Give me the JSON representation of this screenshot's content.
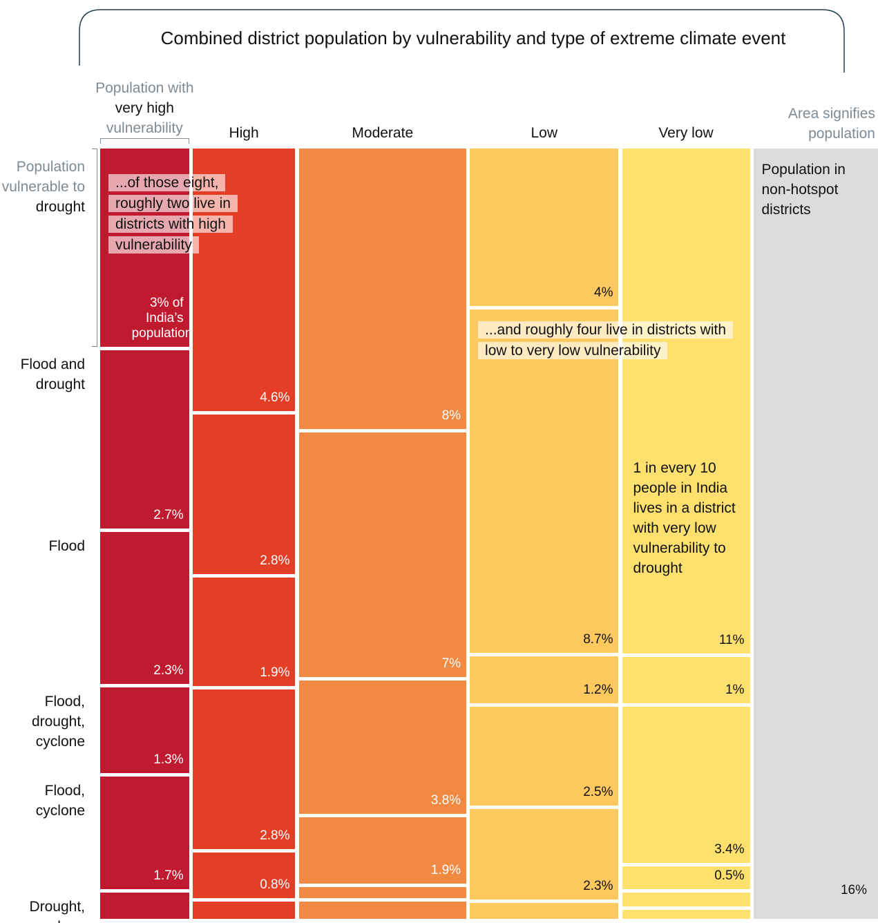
{
  "chart_data": {
    "type": "mosaic",
    "title": "Combined district population by vulnerability and type of extreme climate event",
    "column_header_note": [
      "Population with",
      "vulnerability"
    ],
    "categories": [
      "very high",
      "High",
      "Moderate",
      "Low",
      "Very low"
    ],
    "colors": [
      "#bf1a2f",
      "#e53e26",
      "#f08a43",
      "#fdc85e",
      "#fde06e"
    ],
    "row_label_note": "Population vulnerable to",
    "series": [
      {
        "name": "drought",
        "values": [
          3,
          4.6,
          8,
          4,
          11
        ],
        "value_labels": [
          "3% of India’s population",
          "4.6%",
          "8%",
          "4%",
          "11%"
        ]
      },
      {
        "name": "Flood and drought",
        "values": [
          2.7,
          2.8,
          7,
          8.7,
          1
        ],
        "value_labels": [
          "2.7%",
          "2.8%",
          "7%",
          "8.7%",
          "1%"
        ]
      },
      {
        "name": "Flood",
        "values": [
          2.3,
          1.9,
          3.8,
          1.2,
          3.4
        ],
        "value_labels": [
          "2.3%",
          "1.9%",
          "3.8%",
          "1.2%",
          "3.4%"
        ]
      },
      {
        "name": "Flood, drought, cyclone",
        "values": [
          1.3,
          2.8,
          1.9,
          2.5,
          0.5
        ],
        "value_labels": [
          "1.3%",
          "2.8%",
          "1.9%",
          "2.5%",
          "0.5%"
        ]
      },
      {
        "name": "Flood, cyclone",
        "values": [
          1.7,
          0.8,
          0.3,
          2.3,
          0.3
        ],
        "value_labels": [
          "1.7%",
          "0.8%",
          null,
          "2.3%",
          null
        ]
      },
      {
        "name": "Drought, cyclone",
        "values": [
          0.4,
          0.3,
          0.5,
          0.4,
          0.2
        ],
        "value_labels": [
          null,
          null,
          null,
          null,
          null
        ]
      }
    ],
    "remainder": {
      "label": "Population in non-hotspot districts",
      "value": 16,
      "value_label": "16%",
      "color": "#dcdcdc"
    },
    "area_note": "Area signifies population",
    "annotations": [
      "...of those eight, roughly two live in districts with high vulnerability",
      "...and roughly four live in districts with low to very low vulnerability",
      "1 in every 10 people in India lives in a district with very low vulnerability to drought"
    ]
  }
}
